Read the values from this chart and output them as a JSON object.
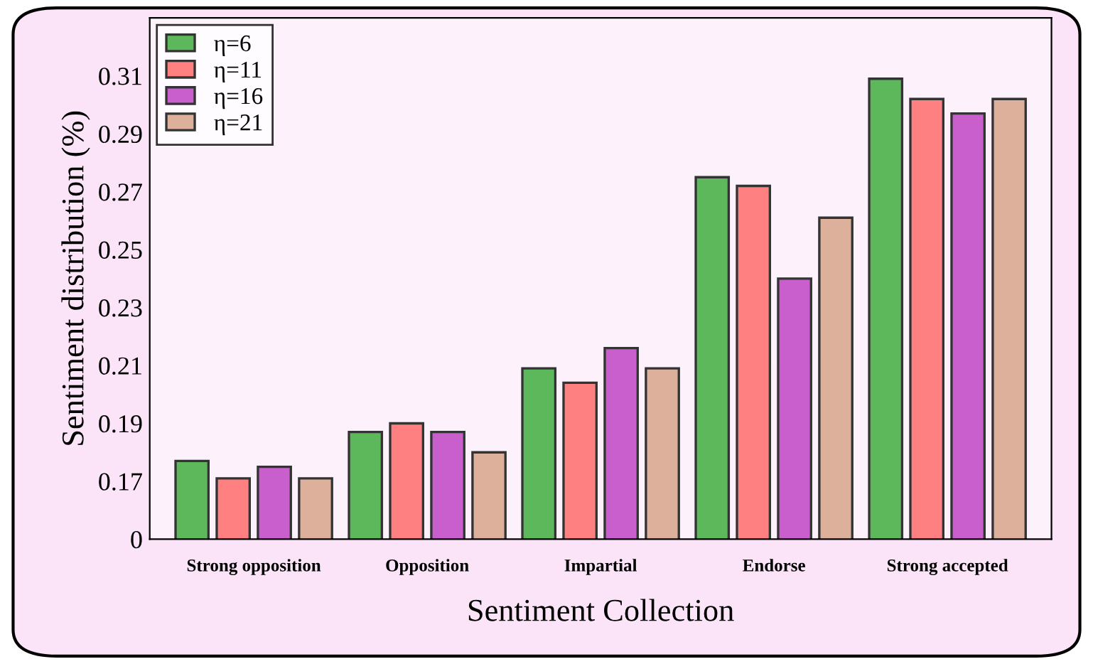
{
  "chart_data": {
    "type": "bar",
    "xlabel": "Sentiment Collection",
    "ylabel": "Sentiment distribution (%)",
    "categories": [
      "Strong opposition",
      "Opposition",
      "Impartial",
      "Endorse",
      "Strong accepted"
    ],
    "series": [
      {
        "name": "η=6",
        "color": "#5cb85a",
        "values": [
          0.177,
          0.187,
          0.209,
          0.275,
          0.309
        ]
      },
      {
        "name": "η=11",
        "color": "#ff8080",
        "values": [
          0.171,
          0.19,
          0.204,
          0.272,
          0.302
        ]
      },
      {
        "name": "η=16",
        "color": "#c95fcc",
        "values": [
          0.175,
          0.187,
          0.216,
          0.24,
          0.297
        ]
      },
      {
        "name": "η=21",
        "color": "#ddb09c",
        "values": [
          0.171,
          0.18,
          0.209,
          0.261,
          0.302
        ]
      }
    ],
    "ylim": [
      0.15,
      0.33
    ],
    "yticks": [
      {
        "value": 0.15,
        "label": "0"
      },
      0.17,
      0.19,
      0.21,
      0.23,
      0.25,
      0.27,
      0.29,
      0.31
    ],
    "grid": false,
    "legend": "top left"
  }
}
